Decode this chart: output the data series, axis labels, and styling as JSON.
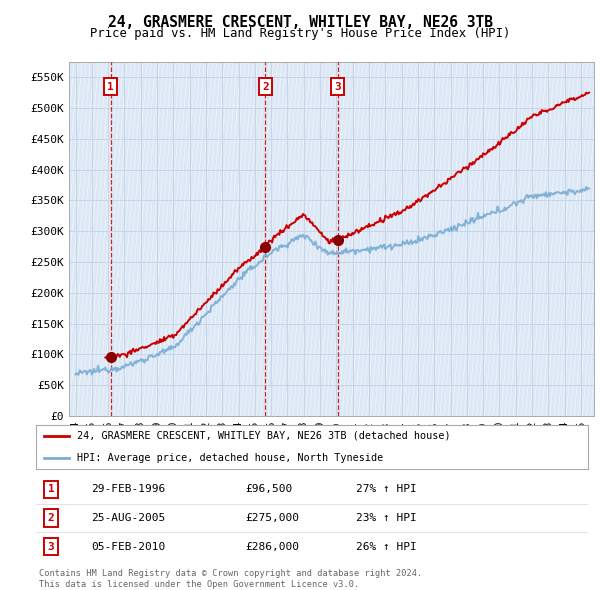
{
  "title": "24, GRASMERE CRESCENT, WHITLEY BAY, NE26 3TB",
  "subtitle": "Price paid vs. HM Land Registry's House Price Index (HPI)",
  "property_label": "24, GRASMERE CRESCENT, WHITLEY BAY, NE26 3TB (detached house)",
  "hpi_label": "HPI: Average price, detached house, North Tyneside",
  "sale_dates_year": [
    1996.16,
    2005.65,
    2010.09
  ],
  "sale_prices": [
    96500,
    275000,
    286000
  ],
  "sale_labels": [
    "1",
    "2",
    "3"
  ],
  "sale_info": [
    {
      "label": "1",
      "date": "29-FEB-1996",
      "price": "£96,500",
      "hpi": "27% ↑ HPI"
    },
    {
      "label": "2",
      "date": "25-AUG-2005",
      "price": "£275,000",
      "hpi": "23% ↑ HPI"
    },
    {
      "label": "3",
      "date": "05-FEB-2010",
      "price": "£286,000",
      "hpi": "26% ↑ HPI"
    }
  ],
  "footer_line1": "Contains HM Land Registry data © Crown copyright and database right 2024.",
  "footer_line2": "This data is licensed under the Open Government Licence v3.0.",
  "property_color": "#cc0000",
  "hpi_color": "#7aadd4",
  "vline_color": "#cc0000",
  "grid_color": "#c8d4e8",
  "background_color": "#ffffff",
  "plot_bg_color": "#dce8f5",
  "ylim": [
    0,
    575000
  ],
  "xmin": 1993.6,
  "xmax": 2025.8,
  "yticks": [
    0,
    50000,
    100000,
    150000,
    200000,
    250000,
    300000,
    350000,
    400000,
    450000,
    500000,
    550000
  ],
  "x_tick_years": [
    1994,
    1995,
    1996,
    1997,
    1998,
    1999,
    2000,
    2001,
    2002,
    2003,
    2004,
    2005,
    2006,
    2007,
    2008,
    2009,
    2010,
    2011,
    2012,
    2013,
    2014,
    2015,
    2016,
    2017,
    2018,
    2019,
    2020,
    2021,
    2022,
    2023,
    2024,
    2025
  ]
}
